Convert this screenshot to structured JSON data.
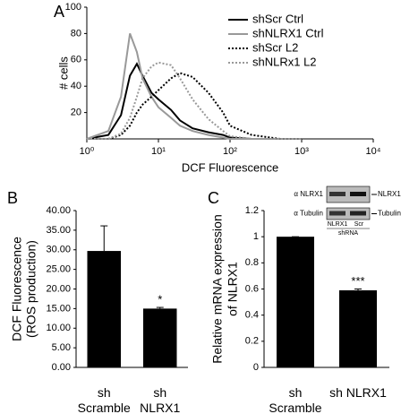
{
  "chart_data": [
    {
      "type": "line",
      "panel": "A",
      "xscale": "log",
      "xlabel": "DCF Fluorescence",
      "ylabel": "# cells",
      "xlim": [
        1,
        10000
      ],
      "xticks": [
        {
          "value": 1,
          "label": "10⁰"
        },
        {
          "value": 10,
          "label": "10¹"
        },
        {
          "value": 100,
          "label": "10²"
        },
        {
          "value": 1000,
          "label": "10³"
        },
        {
          "value": 10000,
          "label": "10⁴"
        }
      ],
      "ylim": [
        0,
        100
      ],
      "yticks": [
        20,
        40,
        60,
        80,
        100
      ],
      "legend": "upper right",
      "x": [
        1,
        2,
        3,
        4,
        5,
        6,
        8,
        10,
        15,
        20,
        30,
        50,
        80,
        100,
        200,
        500,
        1000
      ],
      "series": [
        {
          "name": "shScr Ctrl",
          "color": "#000000",
          "style": "solid",
          "values": [
            0,
            3,
            18,
            48,
            57,
            48,
            35,
            30,
            22,
            14,
            8,
            5,
            3,
            1,
            0,
            0,
            0
          ]
        },
        {
          "name": "shNLRX1 Ctrl",
          "color": "#999999",
          "style": "solid",
          "values": [
            0,
            6,
            32,
            80,
            66,
            46,
            32,
            24,
            16,
            10,
            6,
            3,
            1,
            0,
            0,
            0,
            0
          ]
        },
        {
          "name": "shScr L2",
          "color": "#000000",
          "style": "dotted",
          "values": [
            0,
            0,
            3,
            10,
            20,
            26,
            32,
            37,
            46,
            50,
            47,
            35,
            20,
            10,
            3,
            0,
            0
          ]
        },
        {
          "name": "shNLRx1 L2",
          "color": "#999999",
          "style": "dotted",
          "values": [
            0,
            0,
            4,
            16,
            32,
            46,
            55,
            58,
            56,
            46,
            30,
            15,
            6,
            2,
            0,
            0,
            0
          ]
        }
      ]
    },
    {
      "type": "bar",
      "panel": "B",
      "ylabel": [
        "DCF Fluorescence",
        "(ROS production)"
      ],
      "categories": [
        "sh\nScramble",
        "sh\nNLRX1"
      ],
      "values": [
        29.7,
        15.0
      ],
      "errors": [
        6.4,
        0.3
      ],
      "color": "#000000",
      "ylim": [
        0,
        40
      ],
      "yticks": [
        {
          "value": 0,
          "label": "0.00"
        },
        {
          "value": 5,
          "label": "5.00"
        },
        {
          "value": 10,
          "label": "10.00"
        },
        {
          "value": 15,
          "label": "15.00"
        },
        {
          "value": 20,
          "label": "20.00"
        },
        {
          "value": 25,
          "label": "25.00"
        },
        {
          "value": 30,
          "label": "30.00"
        },
        {
          "value": 35,
          "label": "35.00"
        },
        {
          "value": 40,
          "label": "40.00"
        }
      ],
      "annotations": [
        {
          "index": 1,
          "text": "*"
        }
      ]
    },
    {
      "type": "bar",
      "panel": "C",
      "ylabel": [
        "Relative mRNA expression",
        "of NLRX1"
      ],
      "categories": [
        "sh\nScramble",
        "sh NLRX1"
      ],
      "values": [
        1,
        0.59
      ],
      "errors": [
        0,
        0.01
      ],
      "color": "#000000",
      "ylim": [
        0,
        1.2
      ],
      "yticks": [
        0,
        0.2,
        0.4,
        0.6,
        0.8,
        1,
        1.2
      ],
      "annotations": [
        {
          "index": 1,
          "text": "***"
        }
      ],
      "inset": {
        "row_labels": [
          "α NLRX1",
          "α Tubulin"
        ],
        "lane_labels": [
          "NLRX1",
          "Scr"
        ],
        "group_label": "shRNA",
        "band_labels": [
          "NLRX1",
          "Tubulin"
        ]
      }
    }
  ]
}
